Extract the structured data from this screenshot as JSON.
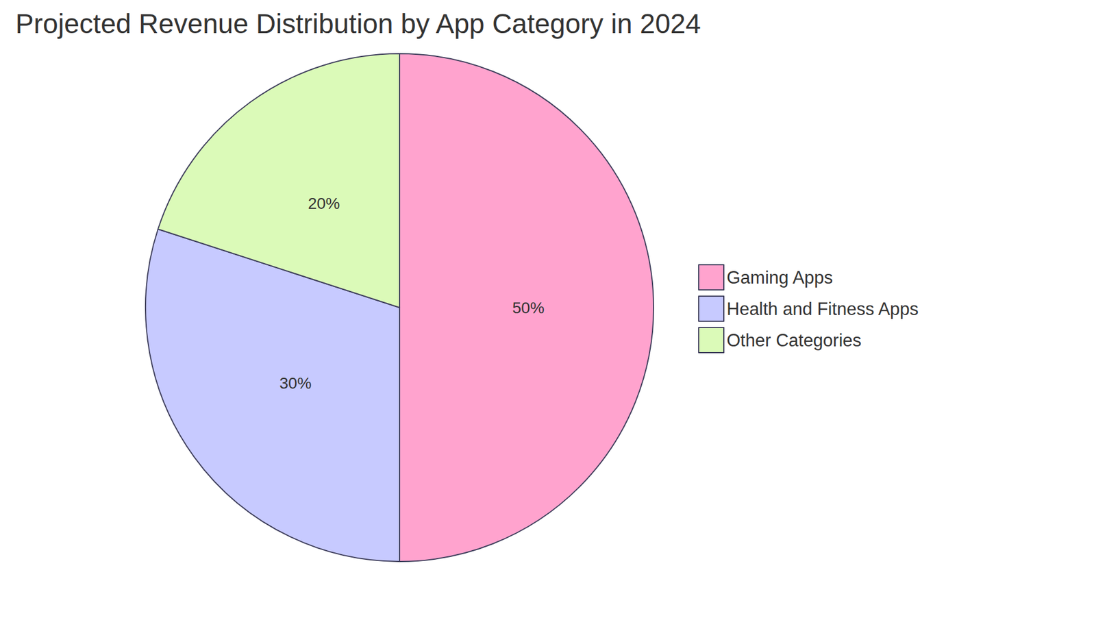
{
  "chart_data": {
    "type": "pie",
    "title": "Projected Revenue Distribution by App Category in 2024",
    "categories": [
      "Gaming Apps",
      "Health and Fitness Apps",
      "Other Categories"
    ],
    "values": [
      50,
      30,
      20
    ],
    "value_labels": [
      "50%",
      "30%",
      "20%"
    ],
    "colors": [
      "#FFA3CE",
      "#C7CAFF",
      "#DBFAB8"
    ],
    "data_labels": true,
    "legend": "right"
  }
}
